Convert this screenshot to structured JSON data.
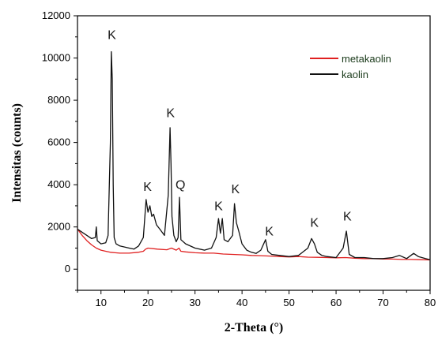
{
  "chart_data": {
    "type": "line",
    "xlabel": "2-Theta (°)",
    "ylabel": "Intensitas (counts)",
    "xlim": [
      5,
      80
    ],
    "ylim": [
      -1000,
      12000
    ],
    "xticks": [
      10,
      20,
      30,
      40,
      50,
      60,
      70,
      80
    ],
    "yticks": [
      0,
      2000,
      4000,
      6000,
      8000,
      10000,
      12000
    ],
    "grid": false,
    "legend_position": "top-right",
    "series": [
      {
        "name": "metakaolin",
        "color": "#e02020",
        "x": [
          5,
          6,
          7,
          8,
          9,
          10,
          11,
          12,
          13,
          14,
          16,
          18,
          19,
          19.5,
          20,
          22,
          24,
          25,
          26,
          26.6,
          27,
          28,
          30,
          32,
          34,
          36,
          38,
          40,
          42,
          44,
          46,
          48,
          50,
          52,
          54,
          56,
          58,
          60,
          62,
          64,
          66,
          68,
          70,
          72,
          74,
          76,
          78,
          80
        ],
        "y": [
          1900,
          1600,
          1350,
          1150,
          1000,
          900,
          850,
          800,
          780,
          760,
          760,
          800,
          850,
          950,
          1000,
          950,
          920,
          1000,
          900,
          1000,
          850,
          820,
          780,
          760,
          760,
          720,
          700,
          680,
          650,
          640,
          620,
          600,
          580,
          600,
          570,
          560,
          550,
          540,
          550,
          520,
          500,
          500,
          480,
          480,
          460,
          460,
          450,
          440
        ]
      },
      {
        "name": "kaolin",
        "color": "#111111",
        "x": [
          5,
          6,
          7,
          8,
          8.8,
          9,
          9.2,
          10,
          11,
          11.5,
          12,
          12.2,
          12.4,
          12.6,
          12.8,
          13.2,
          14,
          15,
          16,
          17,
          18,
          19,
          19.6,
          20,
          20.4,
          20.8,
          21.2,
          21.8,
          22.5,
          23.5,
          24.3,
          24.7,
          24.9,
          25.1,
          25.5,
          26,
          26.4,
          26.7,
          27,
          28,
          30,
          32,
          33.5,
          34.5,
          35,
          35.4,
          35.8,
          36.2,
          37,
          38,
          38.4,
          38.8,
          39.3,
          40,
          41,
          42,
          43,
          44,
          45,
          45.5,
          46.3,
          48,
          50,
          52,
          54,
          54.8,
          55.4,
          56,
          57,
          58,
          60,
          61.5,
          62.2,
          62.8,
          64,
          66,
          68,
          70,
          72,
          73.5,
          75,
          76.5,
          77.5,
          79,
          80
        ],
        "y": [
          1900,
          1750,
          1600,
          1450,
          1500,
          2000,
          1350,
          1200,
          1250,
          1600,
          6000,
          10300,
          9000,
          4000,
          1500,
          1200,
          1100,
          1050,
          1000,
          950,
          1100,
          1500,
          3300,
          2700,
          3000,
          2500,
          2600,
          2100,
          1900,
          1600,
          3500,
          6700,
          5000,
          2500,
          1600,
          1300,
          1500,
          3400,
          1400,
          1200,
          1000,
          900,
          1000,
          1500,
          2400,
          1700,
          2400,
          1400,
          1300,
          1600,
          3100,
          2200,
          1800,
          1200,
          900,
          800,
          750,
          900,
          1400,
          850,
          700,
          650,
          600,
          650,
          1000,
          1450,
          1200,
          800,
          650,
          600,
          550,
          1000,
          1800,
          700,
          550,
          550,
          500,
          500,
          550,
          650,
          500,
          750,
          600,
          500,
          450
        ]
      }
    ],
    "annotations": [
      {
        "text": "K",
        "x": 12.3,
        "y": 10900
      },
      {
        "text": "K",
        "x": 19.9,
        "y": 3700
      },
      {
        "text": "K",
        "x": 24.8,
        "y": 7200
      },
      {
        "text": "Q",
        "x": 26.9,
        "y": 3800
      },
      {
        "text": "K",
        "x": 35.0,
        "y": 2800
      },
      {
        "text": "K",
        "x": 38.6,
        "y": 3600
      },
      {
        "text": "K",
        "x": 45.8,
        "y": 1600
      },
      {
        "text": "K",
        "x": 55.4,
        "y": 2000
      },
      {
        "text": "K",
        "x": 62.4,
        "y": 2300
      }
    ]
  }
}
